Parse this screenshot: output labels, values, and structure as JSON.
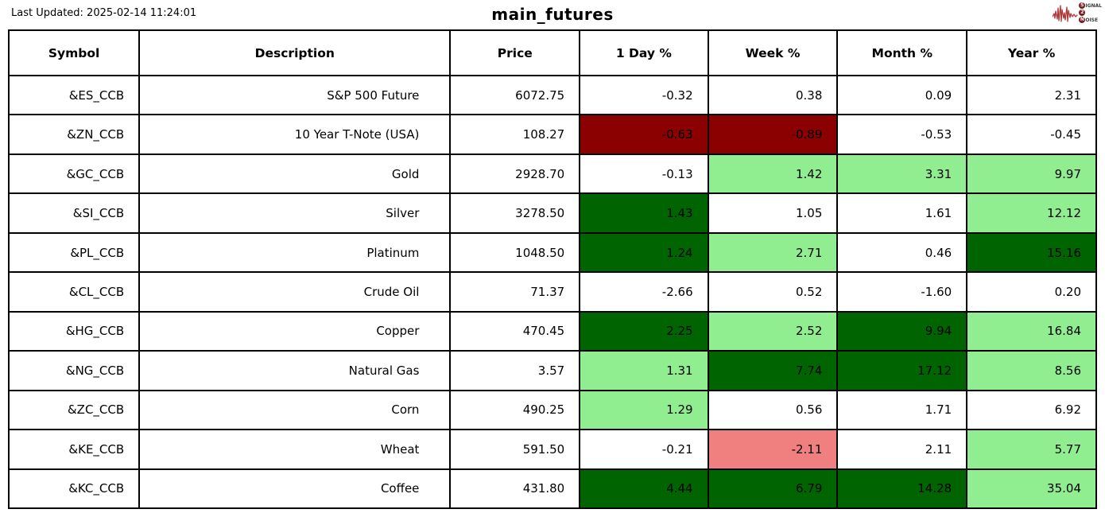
{
  "page": {
    "last_updated": "Last Updated: 2025-02-14 11:24:01",
    "title": "main_futures",
    "logo": {
      "line1_badge": "S",
      "line1_rest": "IGNAL",
      "line2_badge": "2",
      "line2_rest": "",
      "line3_badge": "N",
      "line3_rest": "OISE"
    }
  },
  "colors": {
    "none": "#ffffff",
    "dark_red": "#8b0000",
    "light_red": "#f08080",
    "dark_green": "#006400",
    "light_green": "#90ee90",
    "logo_wave": "#b03a3a",
    "border": "#000000"
  },
  "chart_data": {
    "type": "table",
    "title": "main_futures",
    "last_updated": "2025-02-14 11:24:01",
    "columns": [
      "Symbol",
      "Description",
      "Price",
      "1 Day %",
      "Week %",
      "Month %",
      "Year %"
    ],
    "rows": [
      {
        "symbol": "&ES_CCB",
        "description": "S&P 500 Future",
        "price": "6072.75",
        "changes": [
          {
            "value": "-0.32",
            "bg": "none"
          },
          {
            "value": "0.38",
            "bg": "none"
          },
          {
            "value": "0.09",
            "bg": "none"
          },
          {
            "value": "2.31",
            "bg": "none"
          }
        ]
      },
      {
        "symbol": "&ZN_CCB",
        "description": "10 Year T-Note (USA)",
        "price": "108.27",
        "changes": [
          {
            "value": "-0.63",
            "bg": "dark_red"
          },
          {
            "value": "-0.89",
            "bg": "dark_red"
          },
          {
            "value": "-0.53",
            "bg": "none"
          },
          {
            "value": "-0.45",
            "bg": "none"
          }
        ]
      },
      {
        "symbol": "&GC_CCB",
        "description": "Gold",
        "price": "2928.70",
        "changes": [
          {
            "value": "-0.13",
            "bg": "none"
          },
          {
            "value": "1.42",
            "bg": "light_green"
          },
          {
            "value": "3.31",
            "bg": "light_green"
          },
          {
            "value": "9.97",
            "bg": "light_green"
          }
        ]
      },
      {
        "symbol": "&SI_CCB",
        "description": "Silver",
        "price": "3278.50",
        "changes": [
          {
            "value": "1.43",
            "bg": "dark_green"
          },
          {
            "value": "1.05",
            "bg": "none"
          },
          {
            "value": "1.61",
            "bg": "none"
          },
          {
            "value": "12.12",
            "bg": "light_green"
          }
        ]
      },
      {
        "symbol": "&PL_CCB",
        "description": "Platinum",
        "price": "1048.50",
        "changes": [
          {
            "value": "1.24",
            "bg": "dark_green"
          },
          {
            "value": "2.71",
            "bg": "light_green"
          },
          {
            "value": "0.46",
            "bg": "none"
          },
          {
            "value": "15.16",
            "bg": "dark_green"
          }
        ]
      },
      {
        "symbol": "&CL_CCB",
        "description": "Crude Oil",
        "price": "71.37",
        "changes": [
          {
            "value": "-2.66",
            "bg": "none"
          },
          {
            "value": "0.52",
            "bg": "none"
          },
          {
            "value": "-1.60",
            "bg": "none"
          },
          {
            "value": "0.20",
            "bg": "none"
          }
        ]
      },
      {
        "symbol": "&HG_CCB",
        "description": "Copper",
        "price": "470.45",
        "changes": [
          {
            "value": "2.25",
            "bg": "dark_green"
          },
          {
            "value": "2.52",
            "bg": "light_green"
          },
          {
            "value": "9.94",
            "bg": "dark_green"
          },
          {
            "value": "16.84",
            "bg": "light_green"
          }
        ]
      },
      {
        "symbol": "&NG_CCB",
        "description": "Natural Gas",
        "price": "3.57",
        "changes": [
          {
            "value": "1.31",
            "bg": "light_green"
          },
          {
            "value": "7.74",
            "bg": "dark_green"
          },
          {
            "value": "17.12",
            "bg": "dark_green"
          },
          {
            "value": "8.56",
            "bg": "light_green"
          }
        ]
      },
      {
        "symbol": "&ZC_CCB",
        "description": "Corn",
        "price": "490.25",
        "changes": [
          {
            "value": "1.29",
            "bg": "light_green"
          },
          {
            "value": "0.56",
            "bg": "none"
          },
          {
            "value": "1.71",
            "bg": "none"
          },
          {
            "value": "6.92",
            "bg": "none"
          }
        ]
      },
      {
        "symbol": "&KE_CCB",
        "description": "Wheat",
        "price": "591.50",
        "changes": [
          {
            "value": "-0.21",
            "bg": "none"
          },
          {
            "value": "-2.11",
            "bg": "light_red"
          },
          {
            "value": "2.11",
            "bg": "none"
          },
          {
            "value": "5.77",
            "bg": "light_green"
          }
        ]
      },
      {
        "symbol": "&KC_CCB",
        "description": "Coffee",
        "price": "431.80",
        "changes": [
          {
            "value": "4.44",
            "bg": "dark_green"
          },
          {
            "value": "6.79",
            "bg": "dark_green"
          },
          {
            "value": "14.28",
            "bg": "dark_green"
          },
          {
            "value": "35.04",
            "bg": "light_green"
          }
        ]
      }
    ]
  }
}
